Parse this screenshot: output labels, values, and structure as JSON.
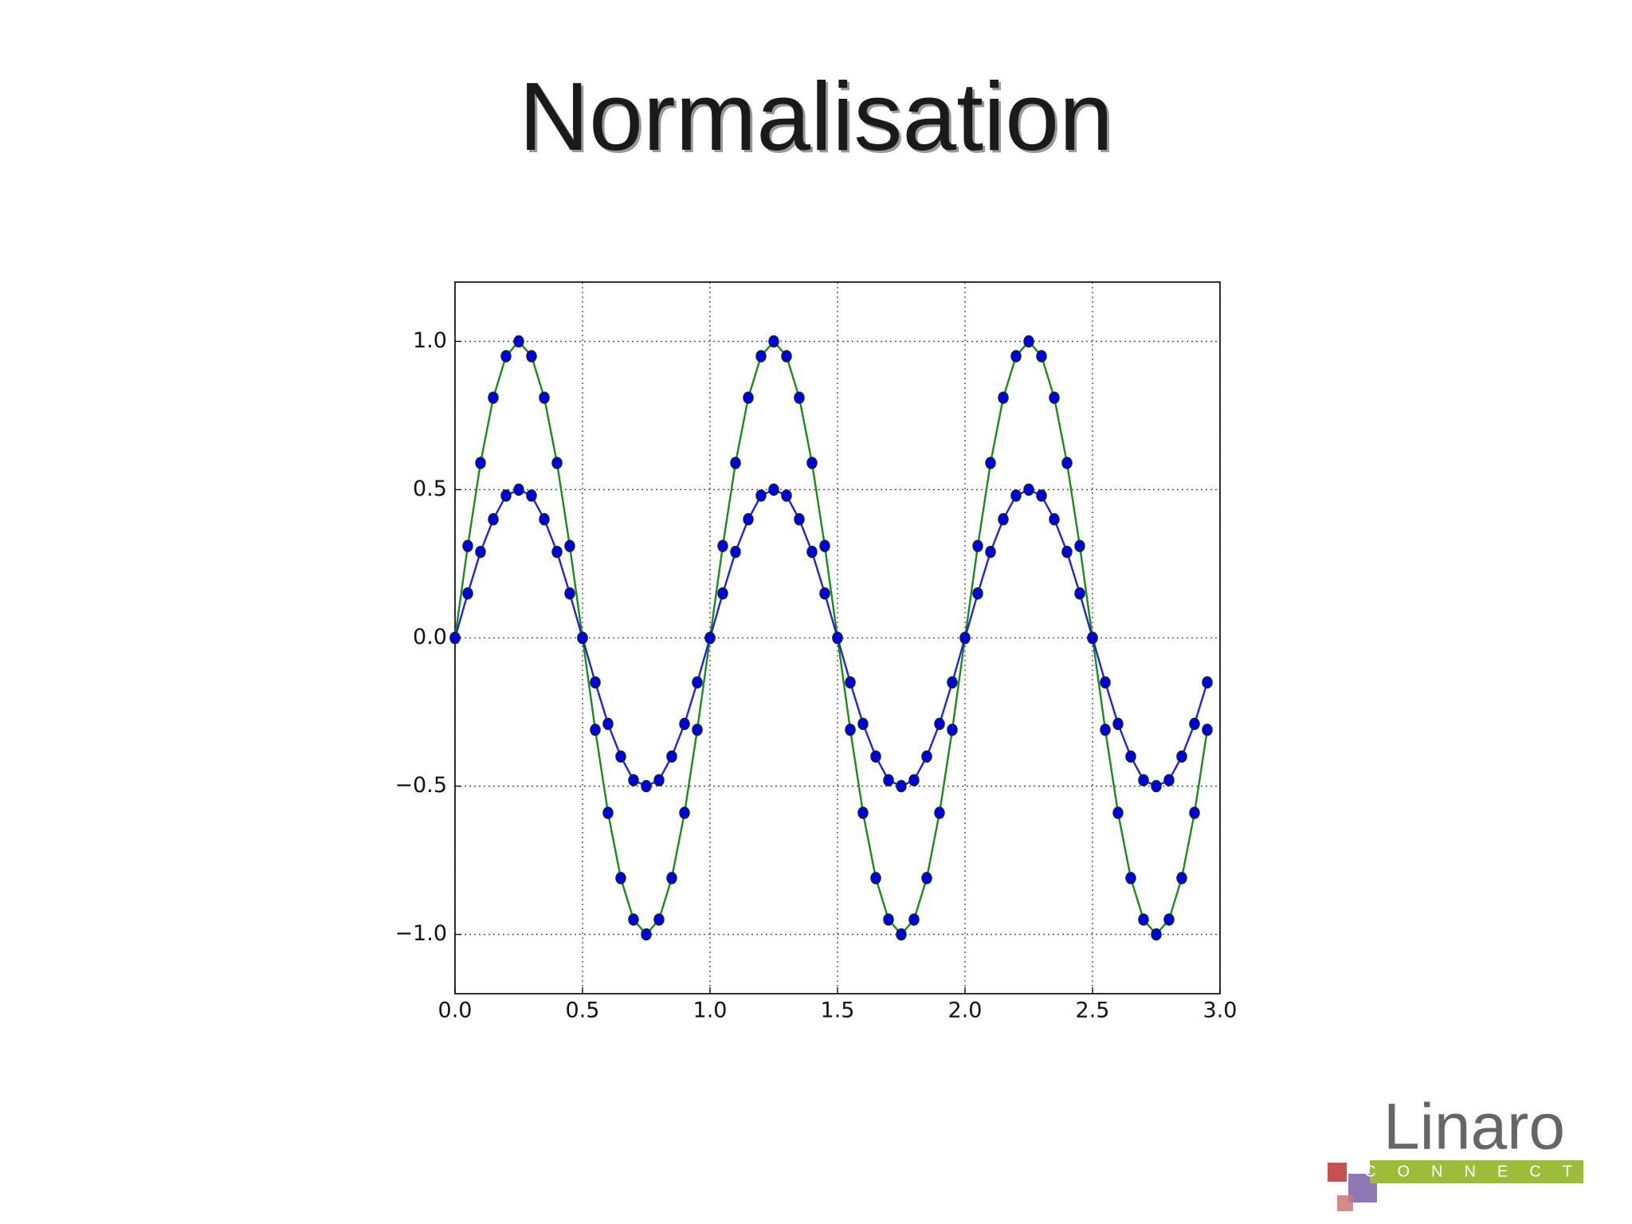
{
  "chart_data": {
    "type": "line",
    "title": "Normalisation",
    "x": [
      0,
      0.05,
      0.1,
      0.15,
      0.2,
      0.25,
      0.3,
      0.35,
      0.4,
      0.45,
      0.5,
      0.55,
      0.6,
      0.65,
      0.7,
      0.75,
      0.8,
      0.85,
      0.9,
      0.95,
      1,
      1.05,
      1.1,
      1.15,
      1.2,
      1.25,
      1.3,
      1.35,
      1.4,
      1.45,
      1.5,
      1.55,
      1.6,
      1.65,
      1.7,
      1.75,
      1.8,
      1.85,
      1.9,
      1.95,
      2,
      2.05,
      2.1,
      2.15,
      2.2,
      2.25,
      2.3,
      2.35,
      2.4,
      2.45,
      2.5,
      2.55,
      2.6,
      2.65,
      2.7,
      2.75,
      2.8,
      2.85,
      2.9,
      2.95
    ],
    "series": [
      {
        "color": "#1a8a1a",
        "values": [
          0,
          0.31,
          0.59,
          0.81,
          0.95,
          1,
          0.95,
          0.81,
          0.59,
          0.31,
          0,
          -0.31,
          -0.59,
          -0.81,
          -0.95,
          -1,
          -0.95,
          -0.81,
          -0.59,
          -0.31,
          0,
          0.31,
          0.59,
          0.81,
          0.95,
          1,
          0.95,
          0.81,
          0.59,
          0.31,
          0,
          -0.31,
          -0.59,
          -0.81,
          -0.95,
          -1,
          -0.95,
          -0.81,
          -0.59,
          -0.31,
          0,
          0.31,
          0.59,
          0.81,
          0.95,
          1,
          0.95,
          0.81,
          0.59,
          0.31,
          0,
          -0.31,
          -0.59,
          -0.81,
          -0.95,
          -1,
          -0.95,
          -0.81,
          -0.59,
          -0.31
        ]
      },
      {
        "color": "#2222dd",
        "values": [
          0,
          0.15,
          0.29,
          0.4,
          0.48,
          0.5,
          0.48,
          0.4,
          0.29,
          0.15,
          0,
          -0.15,
          -0.29,
          -0.4,
          -0.48,
          -0.5,
          -0.48,
          -0.4,
          -0.29,
          -0.15,
          0,
          0.15,
          0.29,
          0.4,
          0.48,
          0.5,
          0.48,
          0.4,
          0.29,
          0.15,
          0,
          -0.15,
          -0.29,
          -0.4,
          -0.48,
          -0.5,
          -0.48,
          -0.4,
          -0.29,
          -0.15,
          0,
          0.15,
          0.29,
          0.4,
          0.48,
          0.5,
          0.48,
          0.4,
          0.29,
          0.15,
          0,
          -0.15,
          -0.29,
          -0.4,
          -0.48,
          -0.5,
          -0.48,
          -0.4,
          -0.29,
          -0.15
        ]
      }
    ],
    "marker_color": "#0000e0",
    "xlim": [
      0,
      3
    ],
    "ylim": [
      -1.2,
      1.2
    ],
    "xticks": [
      {
        "value": 0,
        "label": "0.0"
      },
      {
        "value": 0.5,
        "label": "0.5"
      },
      {
        "value": 1,
        "label": "1.0"
      },
      {
        "value": 1.5,
        "label": "1.5"
      },
      {
        "value": 2,
        "label": "2.0"
      },
      {
        "value": 2.5,
        "label": "2.5"
      },
      {
        "value": 3,
        "label": "3.0"
      }
    ],
    "yticks": [
      {
        "value": -1,
        "label": "−1.0"
      },
      {
        "value": -0.5,
        "label": "−0.5"
      },
      {
        "value": 0,
        "label": "0.0"
      },
      {
        "value": 0.5,
        "label": "0.5"
      },
      {
        "value": 1,
        "label": "1.0"
      }
    ],
    "grid": true
  },
  "logo": {
    "name": "Linaro",
    "tagline": "CONNECT"
  }
}
